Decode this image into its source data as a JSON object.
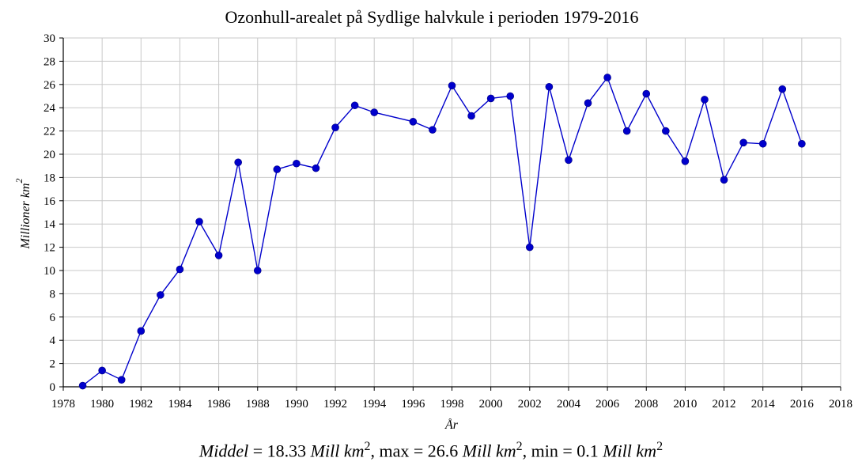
{
  "chart_data": {
    "type": "line",
    "title": "Ozonhull-arealet på Sydlige halvkule i perioden 1979-2016",
    "xlabel": "År",
    "ylabel": "Millioner km",
    "ylabel_exp": "2",
    "xlim": [
      1978,
      2018
    ],
    "ylim": [
      0,
      30
    ],
    "xticks": [
      1978,
      1980,
      1982,
      1984,
      1986,
      1988,
      1990,
      1992,
      1994,
      1996,
      1998,
      2000,
      2002,
      2004,
      2006,
      2008,
      2010,
      2012,
      2014,
      2016,
      2018
    ],
    "yticks": [
      0,
      2,
      4,
      6,
      8,
      10,
      12,
      14,
      16,
      18,
      20,
      22,
      24,
      26,
      28,
      30
    ],
    "grid": true,
    "color": "#0000cc",
    "series": [
      {
        "x": [
          1979,
          1980,
          1981,
          1982,
          1983,
          1984,
          1985,
          1986,
          1987,
          1988,
          1989,
          1990,
          1991,
          1992,
          1993,
          1994,
          1996,
          1997,
          1998,
          1999,
          2000,
          2001,
          2002,
          2003,
          2004,
          2005,
          2006,
          2007,
          2008,
          2009,
          2010,
          2011,
          2012,
          2013,
          2014,
          2015,
          2016
        ],
        "y": [
          0.1,
          1.4,
          0.6,
          4.8,
          7.9,
          10.1,
          14.2,
          11.3,
          19.3,
          10.0,
          18.7,
          19.2,
          18.8,
          22.3,
          24.2,
          23.6,
          22.8,
          22.1,
          25.9,
          23.3,
          24.8,
          25.0,
          12.0,
          25.8,
          19.5,
          24.4,
          26.6,
          22.0,
          25.2,
          22.0,
          19.4,
          24.7,
          17.8,
          21.0,
          20.9,
          25.6,
          20.9
        ]
      }
    ]
  },
  "footer": {
    "mean_label": "Middel",
    "mean_value": " = 18.33 ",
    "max_label": ",  max = 26.6 ",
    "min_label": ",  min = 0.1 ",
    "unit": "Mill km",
    "unit_exp": "2"
  }
}
